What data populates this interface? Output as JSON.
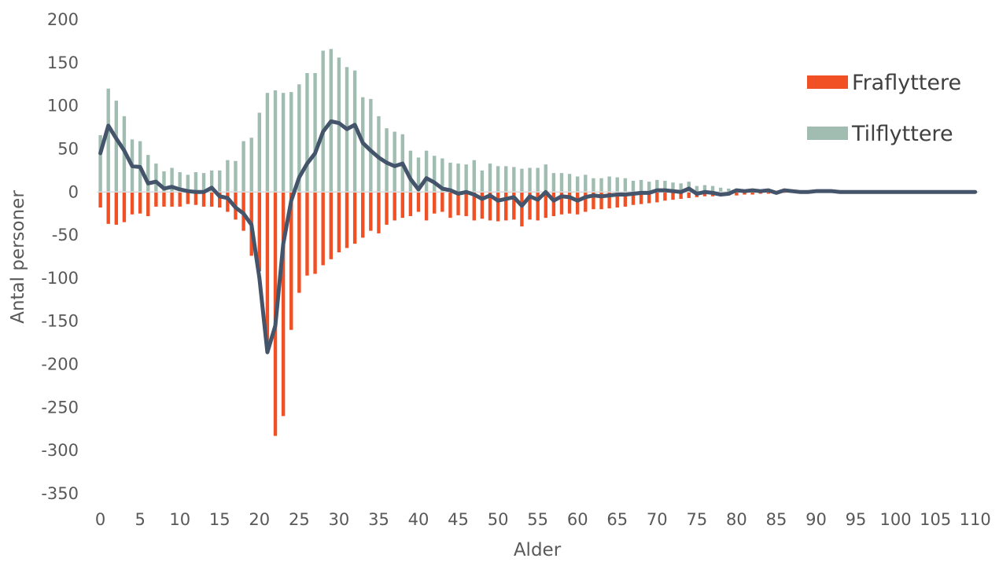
{
  "chart_data": {
    "type": "bar",
    "xlabel": "Alder",
    "ylabel": "Antal personer",
    "ylim": [
      -350,
      200
    ],
    "yticks": [
      200,
      150,
      100,
      50,
      0,
      -50,
      -100,
      -150,
      -200,
      -250,
      -300,
      -350
    ],
    "xlim": [
      0,
      110
    ],
    "xticks": [
      0,
      5,
      10,
      15,
      20,
      25,
      30,
      35,
      40,
      45,
      50,
      55,
      60,
      65,
      70,
      75,
      80,
      85,
      90,
      95,
      100,
      105,
      110
    ],
    "grid": false,
    "legend": "right",
    "colors": {
      "fraflyttere": "#f05023",
      "tilflyttere": "#a1bdb1",
      "net": "#44546a"
    },
    "series": [
      {
        "name": "Fraflyttere",
        "kind": "bar",
        "values": [
          -18,
          -37,
          -38,
          -35,
          -26,
          -25,
          -28,
          -17,
          -17,
          -17,
          -17,
          -14,
          -15,
          -17,
          -17,
          -18,
          -23,
          -32,
          -45,
          -74,
          -92,
          -183,
          -283,
          -260,
          -160,
          -117,
          -97,
          -95,
          -85,
          -78,
          -70,
          -65,
          -60,
          -53,
          -45,
          -48,
          -38,
          -33,
          -30,
          -28,
          -23,
          -33,
          -25,
          -23,
          -30,
          -27,
          -28,
          -33,
          -31,
          -33,
          -34,
          -33,
          -32,
          -40,
          -32,
          -33,
          -30,
          -28,
          -26,
          -25,
          -26,
          -23,
          -20,
          -20,
          -19,
          -18,
          -17,
          -15,
          -14,
          -13,
          -12,
          -10,
          -9,
          -8,
          -7,
          -6,
          -5,
          -5,
          -4,
          -4,
          -4,
          -3,
          -3,
          -2,
          -2,
          -1,
          -1,
          -1,
          -1,
          -1,
          -1,
          -1,
          -1,
          0,
          0,
          0,
          0,
          0,
          0,
          0,
          0,
          0,
          0,
          0,
          0,
          0,
          0,
          0,
          0,
          0,
          0
        ]
      },
      {
        "name": "Tilflyttere",
        "kind": "bar",
        "values": [
          66,
          120,
          106,
          88,
          61,
          59,
          43,
          33,
          24,
          28,
          23,
          20,
          23,
          22,
          25,
          25,
          37,
          36,
          59,
          63,
          92,
          115,
          118,
          115,
          116,
          125,
          138,
          138,
          164,
          166,
          156,
          145,
          141,
          110,
          108,
          88,
          74,
          70,
          67,
          48,
          40,
          48,
          42,
          39,
          34,
          33,
          32,
          37,
          25,
          33,
          30,
          30,
          29,
          27,
          28,
          28,
          32,
          22,
          22,
          21,
          18,
          20,
          16,
          16,
          18,
          17,
          16,
          13,
          14,
          12,
          14,
          13,
          11,
          10,
          12,
          7,
          8,
          7,
          5,
          4,
          4,
          3,
          3,
          2,
          2,
          1,
          1,
          1,
          1,
          1,
          1,
          1,
          1,
          0,
          0,
          0,
          0,
          0,
          0,
          0,
          0,
          0,
          0,
          0,
          0,
          0,
          0,
          0,
          0,
          0,
          0
        ]
      },
      {
        "name": "",
        "kind": "line",
        "values": [
          45,
          77,
          62,
          48,
          30,
          29,
          10,
          12,
          4,
          6,
          3,
          1,
          0,
          0,
          5,
          -5,
          -7,
          -18,
          -25,
          -38,
          -100,
          -186,
          -155,
          -60,
          -10,
          17,
          33,
          45,
          70,
          82,
          80,
          73,
          78,
          57,
          48,
          40,
          34,
          30,
          33,
          15,
          3,
          16,
          11,
          4,
          2,
          -2,
          0,
          -3,
          -8,
          -4,
          -10,
          -8,
          -6,
          -16,
          -5,
          -9,
          0,
          -10,
          -5,
          -6,
          -10,
          -6,
          -4,
          -5,
          -4,
          -3,
          -3,
          -2,
          -1,
          -1,
          2,
          2,
          1,
          0,
          4,
          -2,
          0,
          -1,
          -3,
          -2,
          2,
          1,
          2,
          1,
          2,
          -1,
          2,
          1,
          0,
          0,
          1,
          1,
          1,
          0,
          0,
          0,
          0,
          0,
          0,
          0,
          0,
          0,
          0,
          0,
          0,
          0,
          0,
          0,
          0,
          0,
          0
        ]
      }
    ]
  }
}
